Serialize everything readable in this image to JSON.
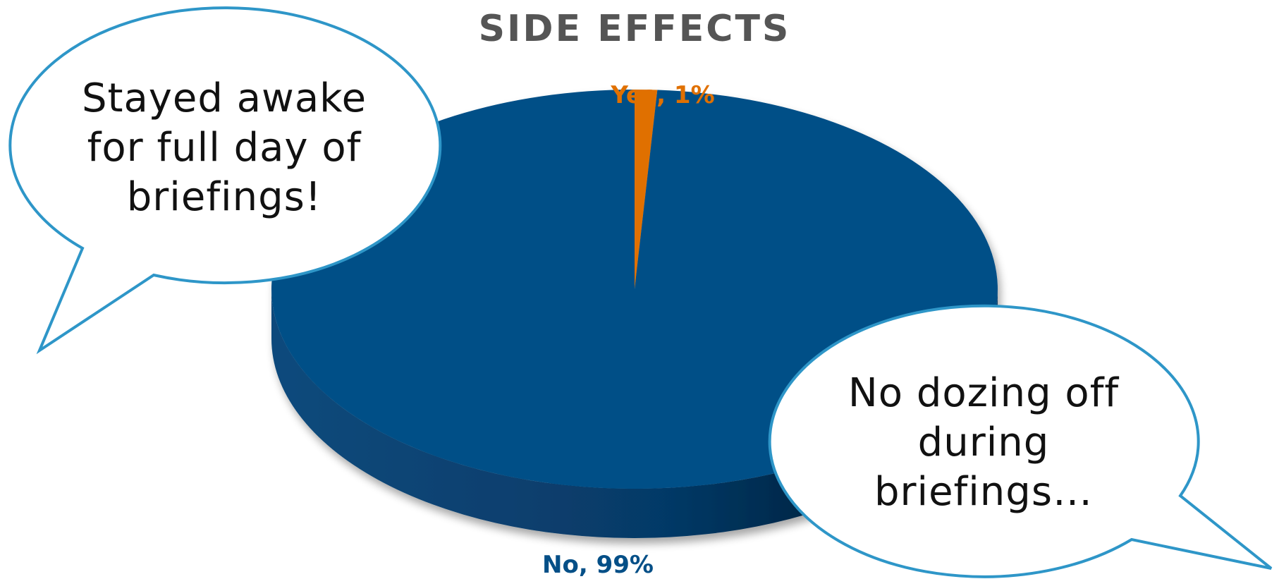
{
  "chart_data": {
    "type": "pie",
    "title": "SIDE EFFECTS",
    "categories": [
      "Yes",
      "No"
    ],
    "values": [
      1,
      99
    ],
    "labels": [
      "Yes, 1%",
      "No, 99%"
    ],
    "colors": [
      "#E07000",
      "#044F87"
    ],
    "style": "3d"
  },
  "callouts": [
    {
      "lines": [
        "Stayed awake",
        "for full day of",
        "briefings!"
      ]
    },
    {
      "lines": [
        "No dozing off",
        "during",
        "briefings…"
      ]
    }
  ],
  "colors": {
    "bubble_stroke": "#2E96C8",
    "title": "#555555"
  }
}
